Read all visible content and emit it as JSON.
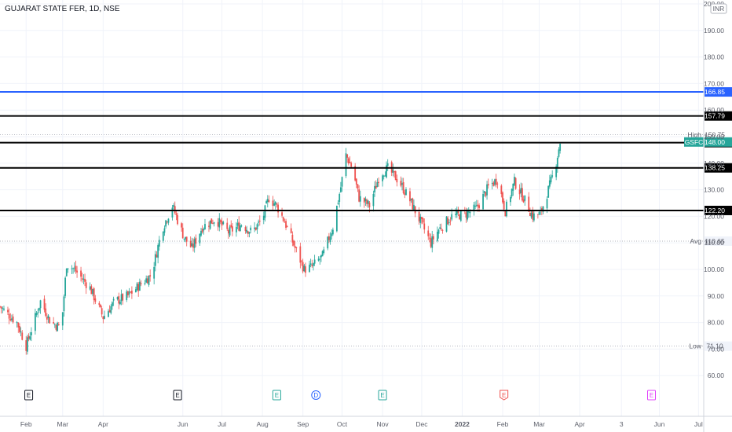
{
  "header": {
    "symbol_title": "GUJARAT STATE FER, 1D, NSE",
    "currency_label": "INR"
  },
  "colors": {
    "up": "#26a69a",
    "down": "#ef5350",
    "level_line": "#000000",
    "alert_line": "#2962ff",
    "grid": "#f0f3fa",
    "avg_line": "#b2b5be"
  },
  "chart_data": {
    "type": "candlestick",
    "title": "GUJARAT STATE FER, 1D, NSE",
    "ylim": [
      50,
      200
    ],
    "y_ticks": [
      "200.00",
      "190.00",
      "180.00",
      "170.00",
      "160.00",
      "150.00",
      "140.00",
      "130.00",
      "120.00",
      "110.00",
      "100.00",
      "90.00",
      "80.00",
      "70.00",
      "60.00"
    ],
    "x_labels": [
      "Feb",
      "Mar",
      "Apr",
      "Jun",
      "Jul",
      "Aug",
      "Sep",
      "Oct",
      "Nov",
      "Dec",
      "2022",
      "Feb",
      "Mar",
      "Apr",
      "3",
      "Jun",
      "Jul"
    ],
    "x_label_dates": [
      "2021-02-01",
      "2021-03-01",
      "2021-04-01",
      "2021-06-01",
      "2021-07-01",
      "2021-08-01",
      "2021-09-01",
      "2021-10-01",
      "2021-11-01",
      "2021-12-01",
      "2022-01-01",
      "2022-02-01",
      "2022-03-01",
      "2022-04-01",
      "2022-05-03",
      "2022-06-01",
      "2022-07-01"
    ],
    "x_range": [
      "2021-01-12",
      "2022-07-05"
    ],
    "price_path": [
      [
        "2021-01-12",
        86
      ],
      [
        "2021-01-25",
        80
      ],
      [
        "2021-02-01",
        71.1
      ],
      [
        "2021-02-12",
        88
      ],
      [
        "2021-02-20",
        80
      ],
      [
        "2021-02-28",
        78
      ],
      [
        "2021-03-04",
        102
      ],
      [
        "2021-03-10",
        100
      ],
      [
        "2021-03-22",
        93
      ],
      [
        "2021-04-01",
        82
      ],
      [
        "2021-04-10",
        88
      ],
      [
        "2021-04-20",
        90
      ],
      [
        "2021-05-01",
        95
      ],
      [
        "2021-05-08",
        98
      ],
      [
        "2021-05-16",
        115
      ],
      [
        "2021-05-24",
        124
      ],
      [
        "2021-06-02",
        112
      ],
      [
        "2021-06-08",
        108
      ],
      [
        "2021-06-16",
        116
      ],
      [
        "2021-06-26",
        119
      ],
      [
        "2021-07-06",
        114
      ],
      [
        "2021-07-16",
        117
      ],
      [
        "2021-07-24",
        114
      ],
      [
        "2021-08-01",
        119
      ],
      [
        "2021-08-06",
        127
      ],
      [
        "2021-08-12",
        124
      ],
      [
        "2021-08-18",
        118
      ],
      [
        "2021-08-26",
        108
      ],
      [
        "2021-09-02",
        100
      ],
      [
        "2021-09-08",
        101
      ],
      [
        "2021-09-16",
        105
      ],
      [
        "2021-09-24",
        116
      ],
      [
        "2021-09-30",
        131
      ],
      [
        "2021-10-04",
        143
      ],
      [
        "2021-10-09",
        138
      ],
      [
        "2021-10-14",
        127
      ],
      [
        "2021-10-22",
        124
      ],
      [
        "2021-10-30",
        136
      ],
      [
        "2021-11-05",
        138
      ],
      [
        "2021-11-14",
        133
      ],
      [
        "2021-11-22",
        126
      ],
      [
        "2021-11-30",
        118
      ],
      [
        "2021-12-08",
        110
      ],
      [
        "2021-12-14",
        115
      ],
      [
        "2021-12-24",
        120
      ],
      [
        "2022-01-04",
        121
      ],
      [
        "2022-01-12",
        123
      ],
      [
        "2022-01-21",
        131
      ],
      [
        "2022-01-28",
        134
      ],
      [
        "2022-02-03",
        122
      ],
      [
        "2022-02-10",
        133
      ],
      [
        "2022-02-17",
        127
      ],
      [
        "2022-02-24",
        120
      ],
      [
        "2022-03-02",
        121
      ],
      [
        "2022-03-08",
        130
      ],
      [
        "2022-03-13",
        138
      ],
      [
        "2022-03-17",
        148
      ]
    ],
    "levels": [
      {
        "label": "166.85",
        "value": 166.85,
        "color": "#2962ff"
      },
      {
        "label": "157.79",
        "value": 157.79,
        "color": "#000000"
      },
      {
        "label": "147.75",
        "value": 147.75,
        "color": "#000000"
      },
      {
        "label": "138.25",
        "value": 138.25,
        "color": "#000000"
      },
      {
        "label": "122.20",
        "value": 122.2,
        "color": "#000000"
      }
    ],
    "markers": {
      "high": {
        "name": "High",
        "label": "150.75",
        "value": 150.75
      },
      "last": {
        "name": "GSFC",
        "label": "148.00",
        "value": 148.0
      },
      "avg": {
        "name": "Avg",
        "label": "110.65",
        "value": 110.65
      },
      "low": {
        "name": "Low",
        "label": "71.10",
        "value": 71.1
      }
    },
    "events": [
      {
        "date": "2021-02-03",
        "label": "E",
        "color": "#131722",
        "shape": "square"
      },
      {
        "date": "2021-05-28",
        "label": "E",
        "color": "#131722",
        "shape": "square"
      },
      {
        "date": "2021-08-12",
        "label": "E",
        "color": "#26a69a",
        "shape": "square"
      },
      {
        "date": "2021-09-11",
        "label": "D",
        "color": "#2962ff",
        "shape": "circle"
      },
      {
        "date": "2021-11-01",
        "label": "E",
        "color": "#26a69a",
        "shape": "square"
      },
      {
        "date": "2022-02-02",
        "label": "E",
        "color": "#ef5350",
        "shape": "flag"
      },
      {
        "date": "2022-05-26",
        "label": "E",
        "color": "#e040fb",
        "shape": "square"
      }
    ]
  }
}
